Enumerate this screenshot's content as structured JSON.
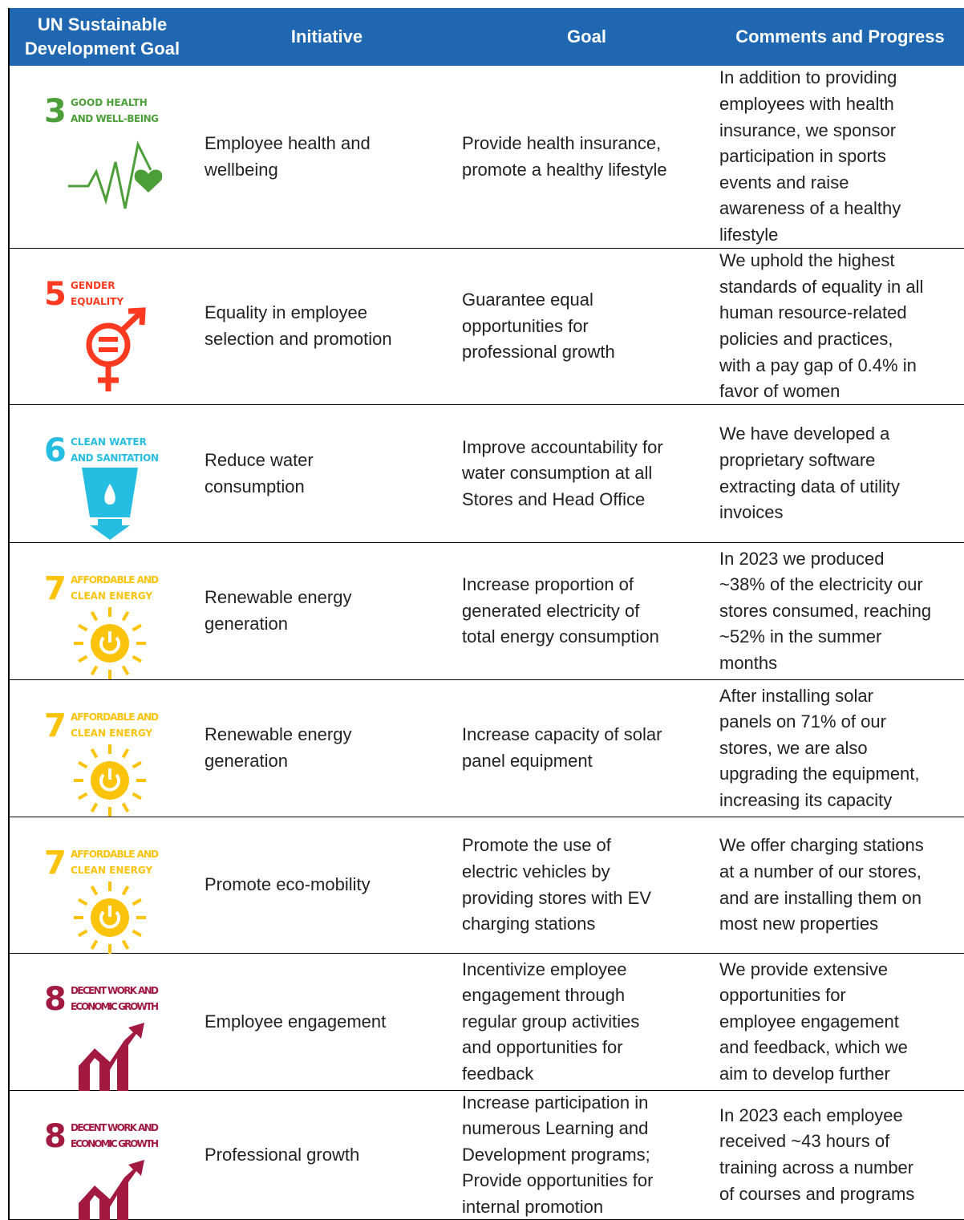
{
  "header": [
    "UN Sustainable Development Goal",
    "Initiative",
    "Goal",
    "Comments and Progress"
  ],
  "rows": [
    {
      "sdg": {
        "number": "3",
        "label": [
          "GOOD HEALTH",
          "AND WELL-BEING"
        ],
        "color": "#4c9f38",
        "icon": "health"
      },
      "initiative": [
        "Employee health and",
        "wellbeing"
      ],
      "goal": [
        "Provide health insurance,",
        "promote a healthy lifestyle"
      ],
      "comments": [
        "In addition to providing",
        "employees with health",
        "insurance, we sponsor",
        "participation in sports",
        "events and raise",
        "awareness of a healthy",
        "lifestyle"
      ]
    },
    {
      "sdg": {
        "number": "5",
        "label": [
          "GENDER",
          "EQUALITY"
        ],
        "color": "#ff3a21",
        "icon": "gender"
      },
      "initiative": [
        "Equality in employee",
        "selection and promotion"
      ],
      "goal": [
        "Guarantee equal",
        "opportunities for",
        "professional growth"
      ],
      "comments": [
        "We uphold the highest",
        "standards of equality in all",
        "human resource-related",
        "policies and practices,",
        "with a pay gap of 0.4% in",
        "favor of women"
      ]
    },
    {
      "sdg": {
        "number": "6",
        "label": [
          "CLEAN WATER",
          "AND SANITATION"
        ],
        "color": "#26bde2",
        "icon": "water"
      },
      "initiative": [
        "Reduce water",
        "consumption"
      ],
      "goal": [
        "Improve accountability for",
        "water consumption at all",
        "Stores and Head Office"
      ],
      "comments": [
        "We have developed a",
        "proprietary software",
        "extracting data of utility",
        "invoices"
      ]
    },
    {
      "sdg": {
        "number": "7",
        "label": [
          "AFFORDABLE AND",
          "CLEAN ENERGY"
        ],
        "color": "#fcc30b",
        "icon": "energy"
      },
      "initiative": [
        "Renewable energy",
        "generation"
      ],
      "goal": [
        "Increase proportion of",
        "generated electricity of",
        "total energy consumption"
      ],
      "comments": [
        "In 2023 we produced",
        "~38% of the electricity our",
        "stores consumed, reaching",
        "~52% in the summer",
        "months"
      ]
    },
    {
      "sdg": {
        "number": "7",
        "label": [
          "AFFORDABLE AND",
          "CLEAN ENERGY"
        ],
        "color": "#fcc30b",
        "icon": "energy"
      },
      "initiative": [
        "Renewable energy",
        "generation"
      ],
      "goal": [
        "Increase capacity of solar",
        "panel equipment"
      ],
      "comments": [
        "After installing solar",
        "panels on 71% of our",
        "stores, we are also",
        "upgrading the equipment,",
        "increasing its capacity"
      ]
    },
    {
      "sdg": {
        "number": "7",
        "label": [
          "AFFORDABLE AND",
          "CLEAN ENERGY"
        ],
        "color": "#fcc30b",
        "icon": "energy"
      },
      "initiative": [
        "Promote eco-mobility"
      ],
      "goal": [
        "Promote the use of",
        "electric vehicles by",
        "providing stores with EV",
        "charging stations"
      ],
      "comments": [
        "We offer charging stations",
        "at a number of our stores,",
        "and are installing them on",
        "most new properties"
      ]
    },
    {
      "sdg": {
        "number": "8",
        "label": [
          "DECENT WORK AND",
          "ECONOMIC GROWTH"
        ],
        "color": "#a21942",
        "icon": "work"
      },
      "initiative": [
        "Employee engagement"
      ],
      "goal": [
        "Incentivize employee",
        "engagement through",
        "regular group activities",
        "and opportunities for",
        "feedback"
      ],
      "comments": [
        "We provide extensive",
        "opportunities for",
        "employee engagement",
        "and feedback, which we",
        "aim to develop further"
      ]
    },
    {
      "sdg": {
        "number": "8",
        "label": [
          "DECENT WORK AND",
          "ECONOMIC GROWTH"
        ],
        "color": "#a21942",
        "icon": "work"
      },
      "initiative": [
        "Professional growth"
      ],
      "goal": [
        "Increase participation in",
        "numerous Learning and",
        "Development programs;",
        "Provide opportunities for",
        "internal promotion"
      ],
      "comments": [
        "In 2023 each employee",
        "received ~43 hours of",
        "training across a number",
        "of courses and programs"
      ]
    }
  ]
}
